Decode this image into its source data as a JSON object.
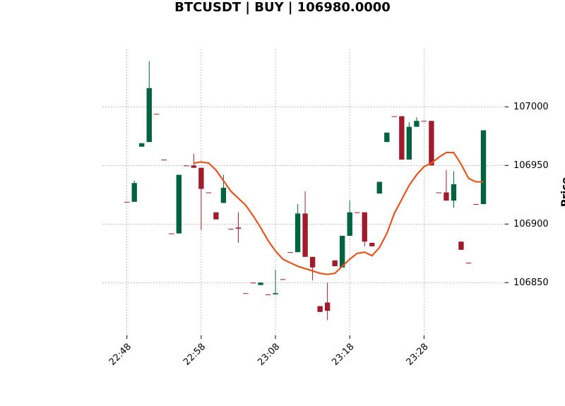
{
  "chart_data": {
    "type": "candlestick",
    "title": "BTCUSDT | BUY | 106980.0000",
    "ylabel": "Price",
    "categories": [
      "22:48",
      null,
      null,
      null,
      null,
      null,
      null,
      null,
      null,
      null,
      "22:58",
      null,
      null,
      null,
      null,
      null,
      null,
      null,
      null,
      null,
      "23:08",
      null,
      null,
      null,
      null,
      null,
      null,
      null,
      null,
      null,
      "23:18",
      null,
      null,
      null,
      null,
      null,
      null,
      null,
      null,
      null,
      "23:28",
      null,
      null,
      null,
      null,
      null,
      null,
      null,
      null
    ],
    "open": [
      106919,
      106919,
      106966,
      106970,
      106994,
      106955,
      106892,
      106892,
      106950,
      106950,
      106948,
      106927,
      106910,
      106918,
      106896,
      106897,
      106841,
      106850,
      106848,
      106840,
      106840,
      106853,
      106876,
      106876,
      106909,
      106872,
      106830,
      106833,
      106869,
      106863,
      106890,
      106910,
      106910,
      106884,
      106926,
      106970,
      106992,
      106992,
      106955,
      106983,
      106988,
      106988,
      106927,
      106927,
      106920,
      106885,
      106867,
      106917,
      106917
    ],
    "high": [
      106919,
      106937,
      106969,
      107039,
      106994,
      106955,
      106892,
      106942,
      106950,
      106960,
      106948,
      106927,
      106910,
      106942,
      106896,
      106910,
      106841,
      106850,
      106850,
      106840,
      106861,
      106853,
      106876,
      106917,
      106928,
      106872,
      106830,
      106850,
      106869,
      106890,
      106920,
      106910,
      106910,
      106884,
      106936,
      106978,
      106992,
      106992,
      106987,
      106991,
      106988,
      106988,
      106927,
      106946,
      106945,
      106885,
      106867,
      106917,
      106980
    ],
    "low": [
      106919,
      106919,
      106966,
      106970,
      106994,
      106955,
      106892,
      106892,
      106950,
      106948,
      106895,
      106927,
      106904,
      106918,
      106896,
      106884,
      106841,
      106850,
      106848,
      106840,
      106840,
      106853,
      106876,
      106876,
      106872,
      106852,
      106825,
      106818,
      106864,
      106863,
      106890,
      106910,
      106881,
      106881,
      106926,
      106970,
      106992,
      106955,
      106955,
      106983,
      106988,
      106950,
      106927,
      106920,
      106914,
      106878,
      106867,
      106917,
      106917
    ],
    "close": [
      106919,
      106935,
      106969,
      107016,
      106994,
      106955,
      106892,
      106942,
      106950,
      106948,
      106930,
      106927,
      106904,
      106931,
      106896,
      106896,
      106841,
      106850,
      106850,
      106840,
      106841,
      106853,
      106876,
      106909,
      106872,
      106863,
      106825,
      106826,
      106864,
      106890,
      106910,
      106910,
      106885,
      106881,
      106936,
      106978,
      106992,
      106955,
      106983,
      106988,
      106988,
      106950,
      106927,
      106920,
      106934,
      106878,
      106867,
      106917,
      106980
    ],
    "up_color": "#006340",
    "down_color": "#a01c2c",
    "lines": [
      {
        "color": "#e8541c",
        "values": [
          null,
          null,
          null,
          null,
          null,
          null,
          null,
          null,
          null,
          106952,
          106953,
          106952,
          106946,
          106937,
          106928,
          106922,
          106916,
          106907,
          106897,
          106886,
          106877,
          106870,
          106867,
          106864,
          106862,
          106860,
          106858,
          106857,
          106858,
          106864,
          106870,
          106875,
          106876,
          106873,
          106880,
          106892,
          106909,
          106921,
          106933,
          106942,
          106949,
          106952,
          106957,
          106961,
          106961,
          106951,
          106939,
          106936,
          106936
        ]
      }
    ],
    "xlim": [
      -3.3,
      50.9
    ],
    "ylim": [
      106805,
      107049
    ],
    "yticks": [
      106850,
      106900,
      106950,
      107000
    ],
    "grid": true
  }
}
